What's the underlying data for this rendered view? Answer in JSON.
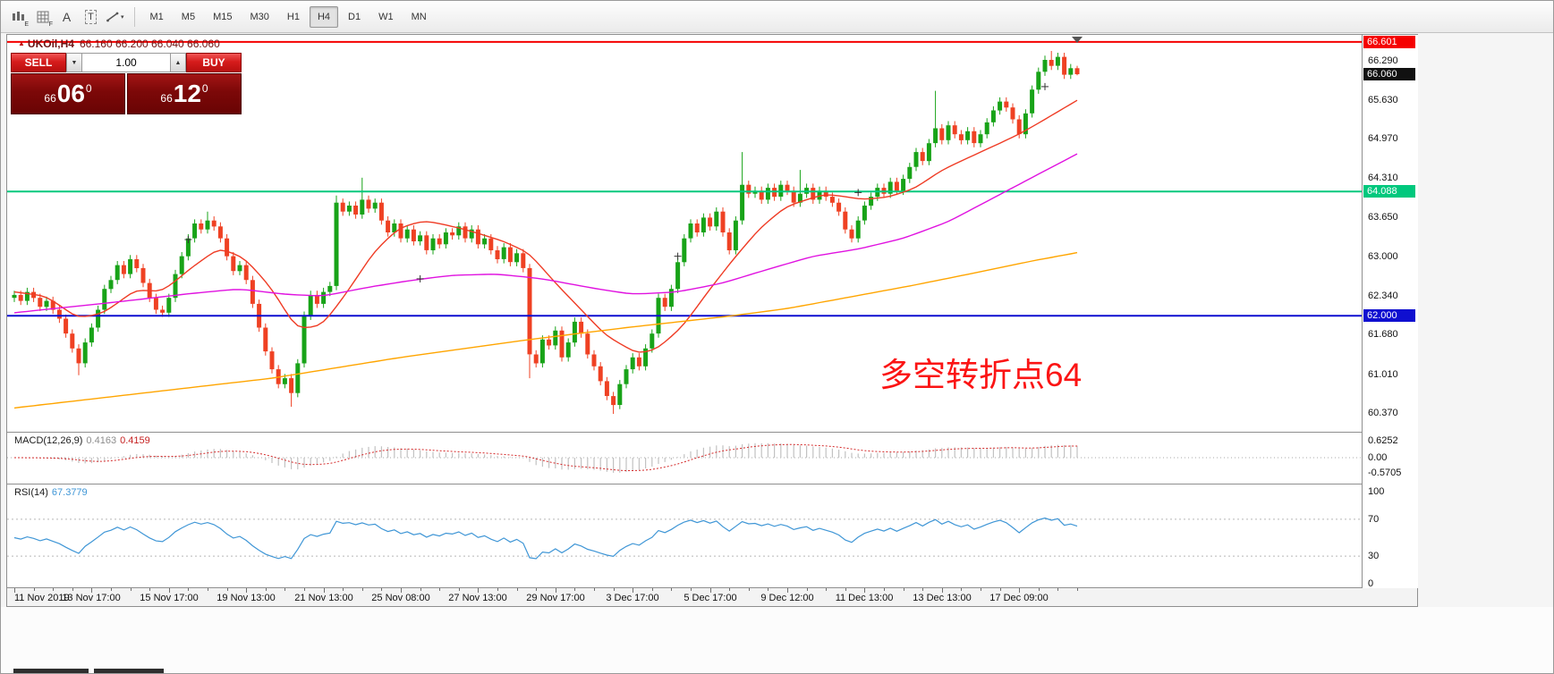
{
  "toolbar": {
    "icons": [
      {
        "name": "chart-style-icon",
        "sub": "E"
      },
      {
        "name": "grid-icon",
        "sub": "F"
      },
      {
        "name": "text-icon",
        "glyph": "A"
      },
      {
        "name": "text-label-icon",
        "glyph": "T"
      },
      {
        "name": "draw-tools-icon",
        "caret": "▾"
      }
    ],
    "timeframes": [
      {
        "label": "M1",
        "active": false
      },
      {
        "label": "M5",
        "active": false
      },
      {
        "label": "M15",
        "active": false
      },
      {
        "label": "M30",
        "active": false
      },
      {
        "label": "H1",
        "active": false
      },
      {
        "label": "H4",
        "active": true
      },
      {
        "label": "D1",
        "active": false
      },
      {
        "label": "W1",
        "active": false
      },
      {
        "label": "MN",
        "active": false
      }
    ]
  },
  "chart": {
    "title_symbol": "UKOil,H4",
    "title_ohlc": "66.160 66.200 66.040 66.060",
    "title_marker": "▲"
  },
  "trade_panel": {
    "sell_label": "SELL",
    "buy_label": "BUY",
    "volume": "1.00",
    "caret_down": "▼",
    "caret_up": "▲",
    "bid": {
      "prefix": "66",
      "main": "06",
      "sup": "0"
    },
    "ask": {
      "prefix": "66",
      "main": "12",
      "sup": "0"
    }
  },
  "annotation": {
    "text": "多空转折点64",
    "color": "#fb1414"
  },
  "macd_panel": {
    "label": "MACD(12,26,9)",
    "value1": "0.4163",
    "value2": "0.4159",
    "axis": [
      "0.6252",
      "0.00",
      "-0.5705"
    ]
  },
  "rsi_panel": {
    "label": "RSI(14)",
    "value": "67.3779",
    "axis": [
      "100",
      "70",
      "30",
      "0"
    ]
  },
  "chart_data": {
    "type": "candlestick",
    "symbol": "UKOil",
    "timeframe": "H4",
    "current_ohlc": {
      "open": 66.16,
      "high": 66.2,
      "low": 66.04,
      "close": 66.06
    },
    "view": {
      "price_top": 66.72,
      "price_bottom": 60.05
    },
    "first_open": 62.3,
    "closes": [
      62.35,
      62.25,
      62.4,
      62.3,
      62.15,
      62.25,
      62.1,
      61.95,
      61.7,
      61.45,
      61.2,
      61.55,
      61.8,
      62.1,
      62.45,
      62.6,
      62.85,
      62.7,
      62.95,
      62.8,
      62.55,
      62.3,
      62.1,
      62.05,
      62.3,
      62.7,
      63.0,
      63.3,
      63.55,
      63.45,
      63.6,
      63.5,
      63.3,
      63.0,
      62.75,
      62.85,
      62.6,
      62.2,
      61.8,
      61.4,
      61.1,
      60.85,
      60.95,
      60.7,
      61.2,
      62.0,
      62.35,
      62.2,
      62.4,
      62.5,
      63.9,
      63.75,
      63.85,
      63.7,
      63.95,
      63.8,
      63.9,
      63.6,
      63.4,
      63.55,
      63.3,
      63.45,
      63.25,
      63.35,
      63.1,
      63.3,
      63.2,
      63.4,
      63.35,
      63.5,
      63.3,
      63.45,
      63.2,
      63.3,
      63.1,
      62.95,
      63.15,
      62.9,
      63.05,
      62.8,
      61.35,
      61.2,
      61.6,
      61.5,
      61.75,
      61.3,
      61.55,
      61.9,
      61.7,
      61.35,
      61.15,
      60.9,
      60.65,
      60.5,
      60.85,
      61.1,
      61.3,
      61.15,
      61.45,
      61.7,
      62.3,
      62.15,
      62.45,
      62.9,
      63.3,
      63.55,
      63.4,
      63.65,
      63.5,
      63.75,
      63.4,
      63.1,
      63.6,
      64.2,
      64.05,
      64.1,
      63.95,
      64.15,
      64.0,
      64.2,
      64.1,
      63.9,
      64.05,
      64.15,
      63.95,
      64.1,
      64.0,
      63.9,
      63.75,
      63.45,
      63.3,
      63.6,
      63.85,
      64.0,
      64.15,
      64.05,
      64.25,
      64.1,
      64.3,
      64.5,
      64.75,
      64.6,
      64.9,
      65.15,
      64.95,
      65.2,
      65.05,
      64.95,
      65.1,
      64.9,
      65.05,
      65.25,
      65.45,
      65.6,
      65.5,
      65.3,
      65.05,
      65.4,
      65.8,
      66.1,
      66.3,
      66.2,
      66.35,
      66.05,
      66.16,
      66.06
    ],
    "wick_overrides": {
      "10": {
        "l": 61.0
      },
      "30": {
        "h": 63.75
      },
      "43": {
        "l": 60.47
      },
      "50": {
        "h": 64.02
      },
      "54": {
        "h": 64.32
      },
      "80": {
        "l": 60.95
      },
      "93": {
        "l": 60.35
      },
      "113": {
        "h": 64.75
      },
      "122": {
        "h": 64.45
      },
      "143": {
        "h": 65.78
      },
      "161": {
        "h": 66.45
      },
      "165": {
        "h": 66.2,
        "l": 66.04
      }
    },
    "colors": {
      "up": "#18a318",
      "down": "#ef4123",
      "macd_hist": "#c2c2c2",
      "macd_signal": "#d42a2a",
      "rsi_line": "#3f96d6"
    },
    "h_lines": [
      {
        "price": 66.601,
        "color": "#f50000",
        "width": 2
      },
      {
        "price": 64.088,
        "color": "#00c87d",
        "width": 2
      },
      {
        "price": 62.0,
        "color": "#0f0fd0",
        "width": 2
      }
    ],
    "price_axis_ticks": [
      "66.290",
      "65.630",
      "64.970",
      "64.310",
      "63.650",
      "63.000",
      "62.340",
      "61.680",
      "61.010",
      "60.370"
    ],
    "price_badges": [
      {
        "text": "66.601",
        "bg": "#f50000"
      },
      {
        "text": "66.060",
        "bg": "#111111"
      },
      {
        "text": "64.088",
        "bg": "#00c87d"
      },
      {
        "text": "62.000",
        "bg": "#0f0fd0"
      }
    ],
    "ma_lines": [
      {
        "name": "ma-fast-red",
        "color": "#ef3b24",
        "anchors": [
          [
            0,
            62.4
          ],
          [
            5,
            62.33
          ],
          [
            10,
            61.95
          ],
          [
            14,
            62.05
          ],
          [
            19,
            62.45
          ],
          [
            23,
            62.4
          ],
          [
            28,
            62.85
          ],
          [
            32,
            63.15
          ],
          [
            36,
            62.95
          ],
          [
            40,
            62.45
          ],
          [
            44,
            61.75
          ],
          [
            48,
            61.85
          ],
          [
            52,
            62.45
          ],
          [
            56,
            63.1
          ],
          [
            60,
            63.5
          ],
          [
            64,
            63.6
          ],
          [
            70,
            63.45
          ],
          [
            76,
            63.25
          ],
          [
            80,
            63.05
          ],
          [
            84,
            62.55
          ],
          [
            88,
            62.1
          ],
          [
            92,
            61.65
          ],
          [
            97,
            61.35
          ],
          [
            100,
            61.45
          ],
          [
            104,
            61.85
          ],
          [
            108,
            62.45
          ],
          [
            112,
            63.0
          ],
          [
            116,
            63.5
          ],
          [
            120,
            63.85
          ],
          [
            126,
            64.05
          ],
          [
            132,
            63.95
          ],
          [
            136,
            64.0
          ],
          [
            140,
            64.15
          ],
          [
            144,
            64.45
          ],
          [
            148,
            64.65
          ],
          [
            152,
            64.85
          ],
          [
            156,
            65.05
          ],
          [
            160,
            65.3
          ],
          [
            165,
            65.62
          ]
        ]
      },
      {
        "name": "ma-mid-magenta",
        "color": "#e012e0",
        "anchors": [
          [
            0,
            62.05
          ],
          [
            15,
            62.22
          ],
          [
            28,
            62.38
          ],
          [
            35,
            62.45
          ],
          [
            42,
            62.36
          ],
          [
            48,
            62.33
          ],
          [
            55,
            62.48
          ],
          [
            62,
            62.6
          ],
          [
            68,
            62.68
          ],
          [
            75,
            62.7
          ],
          [
            82,
            62.62
          ],
          [
            90,
            62.46
          ],
          [
            96,
            62.36
          ],
          [
            103,
            62.4
          ],
          [
            110,
            62.55
          ],
          [
            117,
            62.78
          ],
          [
            124,
            63.0
          ],
          [
            131,
            63.12
          ],
          [
            138,
            63.3
          ],
          [
            145,
            63.58
          ],
          [
            152,
            63.98
          ],
          [
            159,
            64.38
          ],
          [
            165,
            64.72
          ]
        ]
      },
      {
        "name": "ma-slow-orange",
        "color": "#ffa500",
        "anchors": [
          [
            0,
            60.45
          ],
          [
            20,
            60.7
          ],
          [
            40,
            60.95
          ],
          [
            60,
            61.3
          ],
          [
            80,
            61.6
          ],
          [
            95,
            61.8
          ],
          [
            110,
            61.98
          ],
          [
            120,
            62.12
          ],
          [
            130,
            62.32
          ],
          [
            140,
            62.52
          ],
          [
            150,
            62.74
          ],
          [
            158,
            62.92
          ],
          [
            165,
            63.06
          ]
        ]
      }
    ],
    "cross_marks": [
      [
        27,
        63.28
      ],
      [
        63,
        62.62
      ],
      [
        103,
        63.0
      ],
      [
        131,
        64.07
      ],
      [
        160,
        65.85
      ]
    ],
    "time_labels": [
      {
        "i": 0,
        "t": "11 Nov 2019"
      },
      {
        "i": 12,
        "t": "13 Nov 17:00"
      },
      {
        "i": 24,
        "t": "15 Nov 17:00"
      },
      {
        "i": 36,
        "t": "19 Nov 13:00"
      },
      {
        "i": 48,
        "t": "21 Nov 13:00"
      },
      {
        "i": 60,
        "t": "25 Nov 08:00"
      },
      {
        "i": 72,
        "t": "27 Nov 13:00"
      },
      {
        "i": 84,
        "t": "29 Nov 17:00"
      },
      {
        "i": 96,
        "t": "3 Dec 17:00"
      },
      {
        "i": 108,
        "t": "5 Dec 17:00"
      },
      {
        "i": 120,
        "t": "9 Dec 12:00"
      },
      {
        "i": 132,
        "t": "11 Dec 13:00"
      },
      {
        "i": 144,
        "t": "13 Dec 13:00"
      },
      {
        "i": 156,
        "t": "17 Dec 09:00"
      }
    ],
    "macd": {
      "params": "12,26,9",
      "values": [
        0.4163,
        0.4159
      ],
      "axis_max": 0.6252,
      "axis_min": -0.5705
    },
    "rsi": {
      "period": 14,
      "value": 67.3779,
      "levels": [
        70,
        30
      ]
    }
  }
}
